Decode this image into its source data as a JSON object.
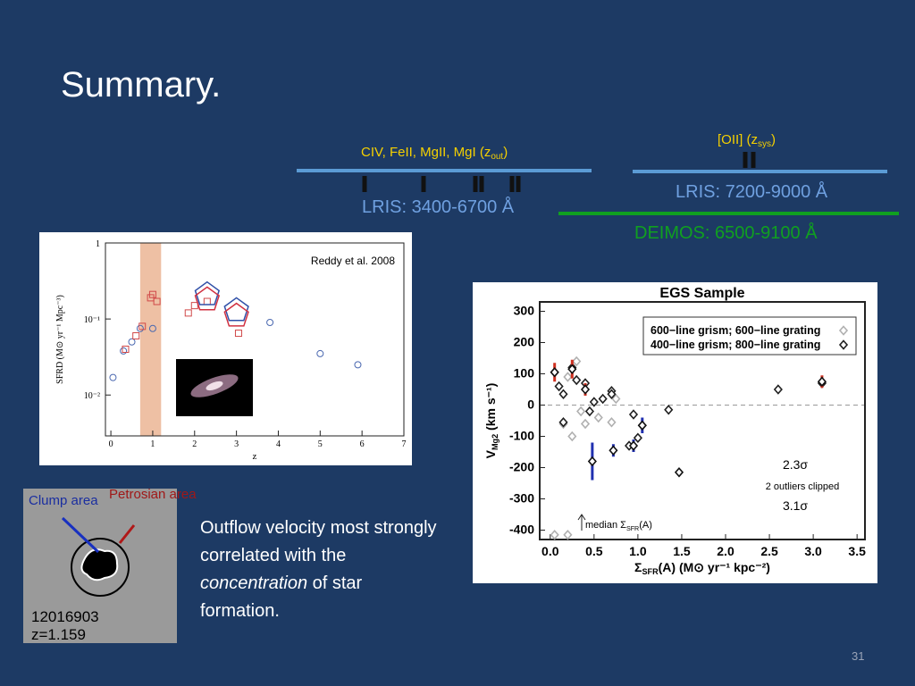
{
  "title": "Summary.",
  "spectrum": {
    "blue_label": {
      "main": "CIV, FeII, MgII, MgI (z",
      "sub": "out",
      "end": ")"
    },
    "lris_blue": "LRIS: 3400-6700 Å",
    "oii_label": {
      "main": "[OII] (z",
      "sub": "sys",
      "end": ")"
    },
    "lris_red": "LRIS: 7200-9000 Å",
    "deimos": "DEIMOS: 6500-9100 Å"
  },
  "charts": [
    {
      "type": "scatter",
      "log_y": true,
      "annotation": "Reddy et al. 2008",
      "xlabel": "z",
      "ylabel": "SFRD (M⊙ yr⁻¹ Mpc⁻³)",
      "xlim": [
        -0.13,
        7
      ],
      "ylim": [
        0.0029,
        1
      ],
      "xticks": [
        0,
        1,
        2,
        3,
        4,
        5,
        6,
        7
      ],
      "yticks": [
        1,
        {
          "value": 0.1,
          "label": "10⁻¹"
        },
        {
          "value": 0.01,
          "label": "10⁻²"
        }
      ],
      "shaded_range": [
        0.7,
        1.2
      ],
      "shade_color": "#eec0a4",
      "series": [
        {
          "color": "#4a68b0",
          "marker": "circle",
          "x": [
            0.05,
            0.3,
            0.5,
            0.7,
            1.0,
            3.8,
            5.0,
            5.9
          ],
          "values": [
            0.017,
            0.038,
            0.05,
            0.075,
            0.075,
            0.09,
            0.035,
            0.025
          ]
        },
        {
          "color": "#d04848",
          "marker": "square",
          "x": [
            0.35,
            0.6,
            0.75,
            0.95,
            1.0,
            1.1,
            1.85,
            2.0,
            2.3,
            3.05
          ],
          "values": [
            0.04,
            0.06,
            0.08,
            0.19,
            0.21,
            0.17,
            0.12,
            0.15,
            0.17,
            0.065
          ]
        },
        {
          "color": "#3050a8",
          "marker": "pentagon",
          "x": [
            2.3,
            3.0
          ],
          "values": [
            0.21,
            0.13
          ]
        },
        {
          "color": "#d03040",
          "marker": "pentagon",
          "x": [
            2.3,
            3.0
          ],
          "values": [
            0.18,
            0.11
          ]
        }
      ]
    },
    {
      "type": "scatter",
      "title": "EGS Sample",
      "ylabel": {
        "main": "V",
        "sub": "Mg2",
        "end": " (km s⁻¹)"
      },
      "xlabel": {
        "main": "Σ",
        "sub": "SFR",
        "end": "(A)  (M⊙ yr⁻¹ kpc⁻²)"
      },
      "xlim": [
        -0.12,
        3.59
      ],
      "ylim": [
        -430,
        330
      ],
      "xticks": [
        {
          "value": 0,
          "label": "0.0"
        },
        0.5,
        {
          "value": 1,
          "label": "1.0"
        },
        1.5,
        {
          "value": 2,
          "label": "2.0"
        },
        2.5,
        {
          "value": 3,
          "label": "3.0"
        },
        3.5
      ],
      "yticks": [
        -400,
        -300,
        -200,
        -100,
        0,
        100,
        200,
        300
      ],
      "dashed_zero_line": true,
      "notes": [
        "2.3σ",
        "2 outliers clipped",
        "3.1σ"
      ],
      "median_label": {
        "main": "median Σ",
        "sub": "SFR",
        "end": "(A)"
      },
      "series": [
        {
          "name": "600−line grism; 600−line grating",
          "color": "#b0b0b0",
          "marker": "diamond",
          "x": [
            0.2,
            0.3,
            0.15,
            0.25,
            0.35,
            0.4,
            0.55,
            0.7,
            0.75,
            0.2,
            0.05
          ],
          "values": [
            90,
            140,
            -60,
            -100,
            -20,
            -60,
            -40,
            -55,
            20,
            -415,
            -415
          ]
        },
        {
          "name": "400−line grism; 800−line grating",
          "color": "#202020",
          "marker": "diamond",
          "x": [
            0.05,
            0.1,
            0.15,
            0.25,
            0.3,
            0.4,
            0.45,
            0.5,
            0.6,
            0.7,
            0.7,
            0.95,
            1.0,
            1.05,
            1.35,
            2.6,
            3.1,
            0.15,
            0.9
          ],
          "values": [
            105,
            60,
            35,
            120,
            80,
            70,
            -20,
            10,
            20,
            45,
            35,
            -30,
            -105,
            -65,
            -15,
            50,
            70,
            -55,
            -130
          ]
        },
        {
          "color": "#d03020",
          "marker": "diamond",
          "x": [
            0.05,
            0.25,
            0.4,
            3.1
          ],
          "values": [
            105,
            115,
            50,
            75
          ],
          "errors": [
            30,
            30,
            20,
            20
          ]
        },
        {
          "color": "#2030b0",
          "marker": "diamond",
          "x": [
            0.48,
            0.72,
            0.95,
            1.05,
            1.47
          ],
          "values": [
            -180,
            -145,
            -130,
            -65,
            -215
          ],
          "errors": [
            60,
            20,
            20,
            25,
            12
          ]
        }
      ]
    }
  ],
  "inset": {
    "clump": "Clump area",
    "petrosian": "Petrosian area",
    "id": "12016903",
    "z": "z=1.159"
  },
  "text": [
    "Outflow velocity most strongly correlated with the ",
    "concentration",
    " of star formation."
  ],
  "page_number": "31"
}
